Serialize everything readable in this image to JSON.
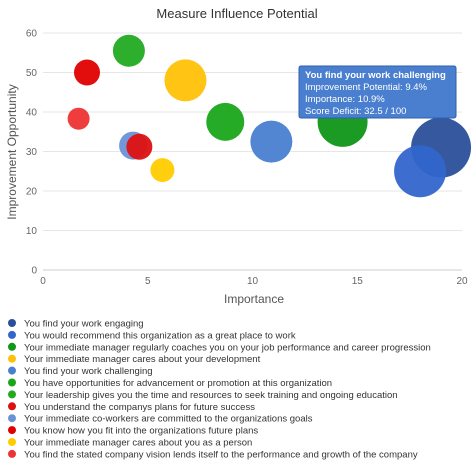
{
  "chart_data": {
    "type": "scatter",
    "title": "Measure Influence Potential",
    "xlabel": "Importance",
    "ylabel": "Improvement Opportunity",
    "xlim": [
      0,
      20
    ],
    "ylim": [
      0,
      60
    ],
    "xticks": [
      "0",
      "5",
      "10",
      "15",
      "20"
    ],
    "yticks": [
      "0",
      "10",
      "20",
      "30",
      "40",
      "50",
      "60"
    ],
    "grid": "horizontal",
    "legend_position": "bottom",
    "series": [
      {
        "name": "You find your work engaging",
        "color": "#2b4f99",
        "points": [
          {
            "x": 19.0,
            "y": 31,
            "r": 30
          }
        ]
      },
      {
        "name": "You would recommend this organization as a great place to work",
        "color": "#3366cc",
        "points": [
          {
            "x": 18.0,
            "y": 25,
            "r": 26
          }
        ]
      },
      {
        "name": "Your immediate manager regularly coaches you on your job performance and career progression",
        "color": "#109618",
        "points": [
          {
            "x": 14.3,
            "y": 37.5,
            "r": 25
          }
        ]
      },
      {
        "name": "Your immediate manager cares about your development",
        "color": "#ffc107",
        "points": [
          {
            "x": 6.8,
            "y": 48,
            "r": 21
          }
        ]
      },
      {
        "name": "You find your work challenging",
        "color": "#4a7fd0",
        "points": [
          {
            "x": 10.9,
            "y": 32.5,
            "r": 21
          }
        ]
      },
      {
        "name": "You have opportunities for advancement or promotion at this organization",
        "color": "#1aa61a",
        "points": [
          {
            "x": 8.7,
            "y": 37.5,
            "r": 19
          }
        ]
      },
      {
        "name": "Your leadership gives you the time and resources to seek training and ongoing education",
        "color": "#22aa22",
        "points": [
          {
            "x": 4.1,
            "y": 55.5,
            "r": 16
          }
        ]
      },
      {
        "name": "You understand the companys plans for future success",
        "color": "#dd1111",
        "points": [
          {
            "x": 4.6,
            "y": 31.2,
            "r": 13
          }
        ]
      },
      {
        "name": "Your immediate co-workers are committed to the organizations goals",
        "color": "#6b92d8",
        "points": [
          {
            "x": 4.3,
            "y": 31.5,
            "r": 14
          }
        ]
      },
      {
        "name": "You know how you fit into the organizations future plans",
        "color": "#e00000",
        "points": [
          {
            "x": 2.1,
            "y": 50,
            "r": 13
          }
        ]
      },
      {
        "name": "Your immediate manager cares about you as a person",
        "color": "#ffcc00",
        "points": [
          {
            "x": 5.7,
            "y": 25.3,
            "r": 12
          }
        ]
      },
      {
        "name": "You find the stated company vision lends itself to the performance and growth of the company",
        "color": "#ee3333",
        "points": [
          {
            "x": 1.7,
            "y": 38.3,
            "r": 11
          }
        ]
      }
    ],
    "tooltip": {
      "title": "You find your work challenging",
      "lines": [
        "Improvement Potential: 9.4%",
        "Importance: 10.9%",
        "Score Deficit: 32.5 / 100"
      ]
    }
  }
}
